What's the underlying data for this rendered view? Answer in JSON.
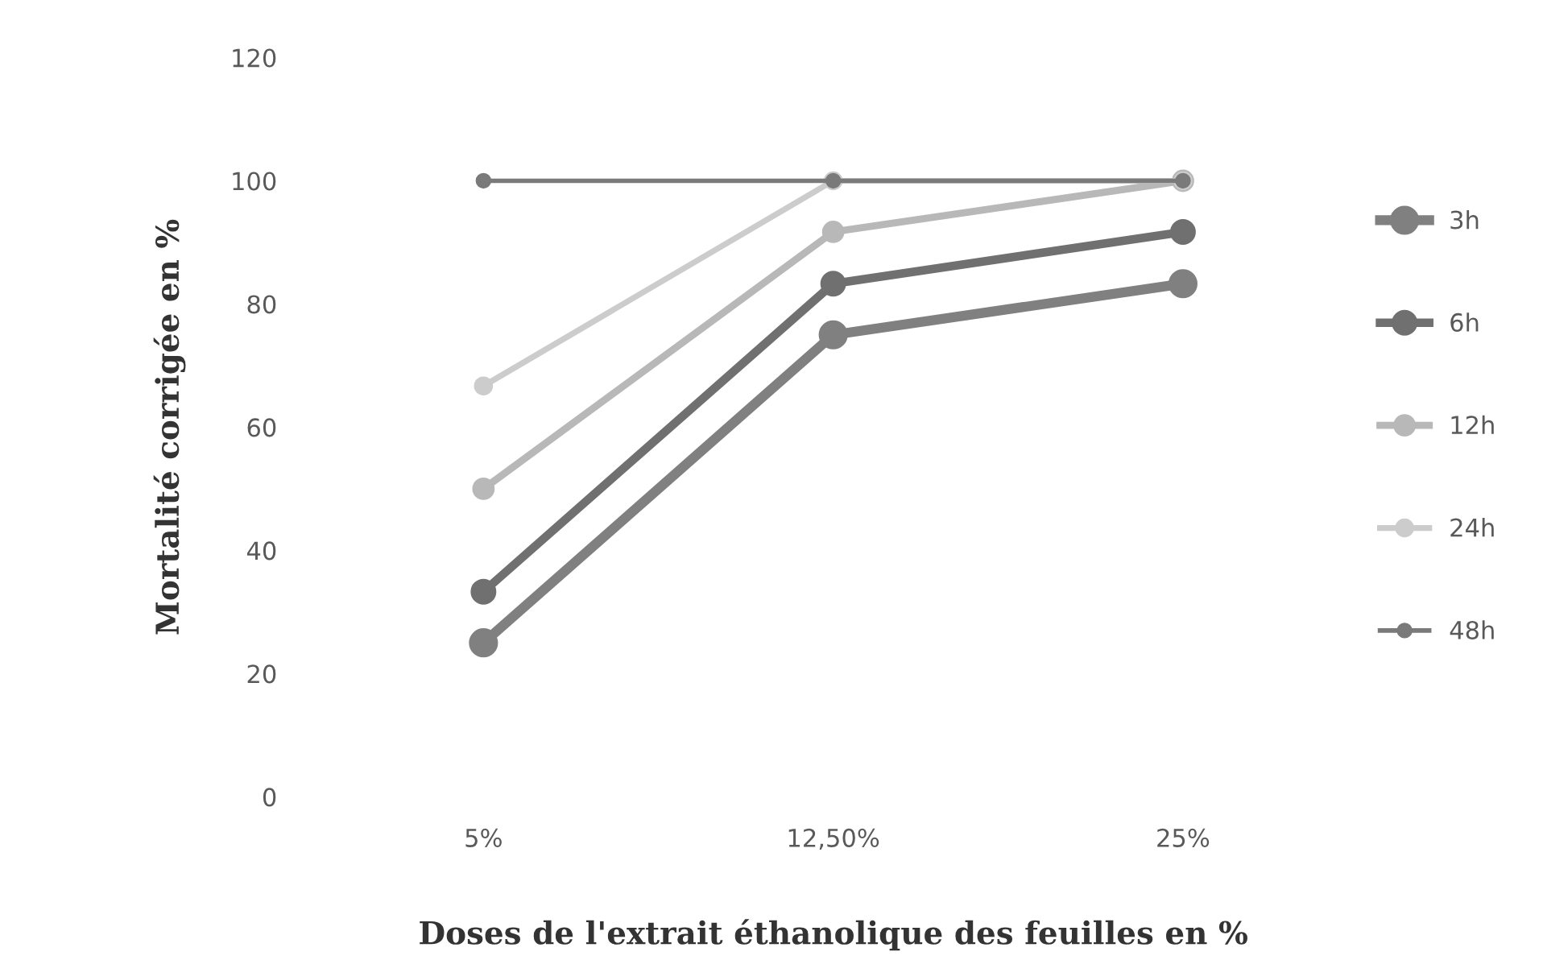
{
  "chart_data": {
    "type": "line",
    "xlabel": "Doses de l'extrait éthanolique des feuilles en %",
    "ylabel": "Mortalité corrigée en %",
    "categories": [
      "5%",
      "12,50%",
      "25%"
    ],
    "series": [
      {
        "name": "3h",
        "color": "#808080",
        "values": [
          25,
          75,
          83.3
        ]
      },
      {
        "name": "6h",
        "color": "#707070",
        "values": [
          33.3,
          83.3,
          91.7
        ]
      },
      {
        "name": "12h",
        "color": "#b8b8b8",
        "values": [
          50,
          91.7,
          100
        ]
      },
      {
        "name": "24h",
        "color": "#cccccc",
        "values": [
          66.7,
          100,
          100
        ]
      },
      {
        "name": "48h",
        "color": "#7a7a7a",
        "values": [
          100,
          100,
          100
        ]
      }
    ],
    "ylim": [
      0,
      120
    ],
    "yticks": [
      0,
      20,
      40,
      60,
      80,
      100,
      120
    ],
    "grid": false,
    "legend": "right",
    "marker": "circle",
    "line_style": "solid"
  }
}
